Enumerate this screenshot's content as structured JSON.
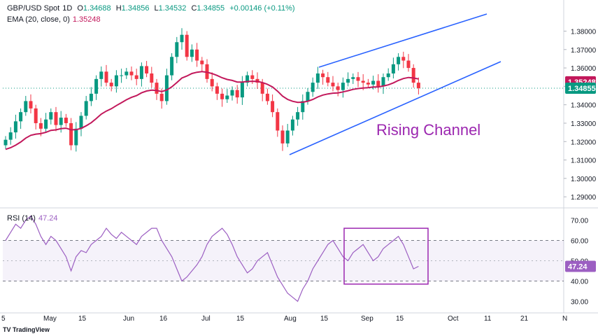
{
  "header": {
    "symbol": "GBP/USD Spot",
    "interval": "1D",
    "open_label": "O",
    "open": "1.34688",
    "high_label": "H",
    "high": "1.34856",
    "low_label": "L",
    "low": "1.34532",
    "close_label": "C",
    "close": "1.34855",
    "change": "+0.00146 (+0.11%)",
    "ema_label": "EMA (20, close, 0)",
    "ema_value": "1.35248"
  },
  "rsi_header": {
    "label": "RSI (14)",
    "value": "47.24"
  },
  "annotation": "Rising Channel",
  "badges": {
    "ema": "1.35248",
    "price": "1.34855",
    "rsi": "47.24"
  },
  "colors": {
    "up": "#089981",
    "down": "#f23645",
    "ema": "#c2185b",
    "rsi": "#9c5fc2",
    "channel": "#2962ff",
    "box": "#9c27b0"
  },
  "logo_text": "TV TradingView",
  "chart_data": [
    {
      "type": "candlestick",
      "title": "GBP/USD Spot, 1D",
      "y_ticks": [
        1.29,
        1.3,
        1.31,
        1.32,
        1.33,
        1.34,
        1.35,
        1.36,
        1.37,
        1.38
      ],
      "y_tick_labels": [
        "1.29000",
        "1.30000",
        "1.31000",
        "1.32000",
        "1.33000",
        "1.34000",
        "1.35000",
        "1.36000",
        "1.37000",
        "1.38000"
      ],
      "ylim": [
        1.2855,
        1.3855
      ],
      "x_labels": [
        "5",
        "May",
        "15",
        "Jun",
        "16",
        "Jul",
        "15",
        "Aug",
        "15",
        "Sep",
        "15",
        "Oct",
        "11",
        "21",
        "N"
      ],
      "close_path": [
        1.321,
        1.325,
        1.331,
        1.336,
        1.342,
        1.338,
        1.33,
        1.327,
        1.332,
        1.336,
        1.329,
        1.333,
        1.33,
        1.318,
        1.327,
        1.334,
        1.342,
        1.346,
        1.354,
        1.358,
        1.352,
        1.35,
        1.356,
        1.356,
        1.358,
        1.356,
        1.354,
        1.361,
        1.357,
        1.352,
        1.346,
        1.342,
        1.356,
        1.366,
        1.374,
        1.378,
        1.366,
        1.37,
        1.364,
        1.362,
        1.354,
        1.35,
        1.346,
        1.343,
        1.345,
        1.348,
        1.344,
        1.352,
        1.356,
        1.354,
        1.352,
        1.346,
        1.342,
        1.336,
        1.326,
        1.319,
        1.326,
        1.332,
        1.336,
        1.342,
        1.347,
        1.352,
        1.357,
        1.355,
        1.352,
        1.35,
        1.348,
        1.352,
        1.354,
        1.355,
        1.353,
        1.352,
        1.351,
        1.353,
        1.35,
        1.355,
        1.357,
        1.362,
        1.366,
        1.364,
        1.36,
        1.352,
        1.349
      ],
      "ema": {
        "name": "EMA (20, close, 0)",
        "last": 1.35248
      },
      "annotations": [
        "Rising Channel"
      ]
    },
    {
      "type": "line",
      "title": "RSI (14)",
      "y_ticks": [
        30,
        40,
        50,
        60,
        70
      ],
      "y_tick_labels": [
        "30.00",
        "40.00",
        "50.00",
        "60.00",
        "70.00"
      ],
      "ylim": [
        25,
        75
      ],
      "bands": [
        40,
        60
      ],
      "values": [
        60,
        64,
        68,
        66,
        70,
        72,
        68,
        62,
        58,
        62,
        60,
        56,
        52,
        45,
        52,
        55,
        54,
        58,
        60,
        62,
        66,
        63,
        61,
        64,
        62,
        60,
        58,
        62,
        64,
        66,
        66,
        60,
        56,
        52,
        46,
        40,
        42,
        45,
        48,
        52,
        58,
        62,
        64,
        66,
        63,
        58,
        52,
        48,
        44,
        46,
        50,
        52,
        54,
        48,
        42,
        38,
        34,
        32,
        30,
        36,
        40,
        46,
        50,
        54,
        58,
        60,
        56,
        52,
        50,
        54,
        56,
        58,
        54,
        50,
        52,
        56,
        58,
        60,
        62,
        58,
        52,
        46,
        47.24
      ],
      "last": 47.24
    }
  ]
}
